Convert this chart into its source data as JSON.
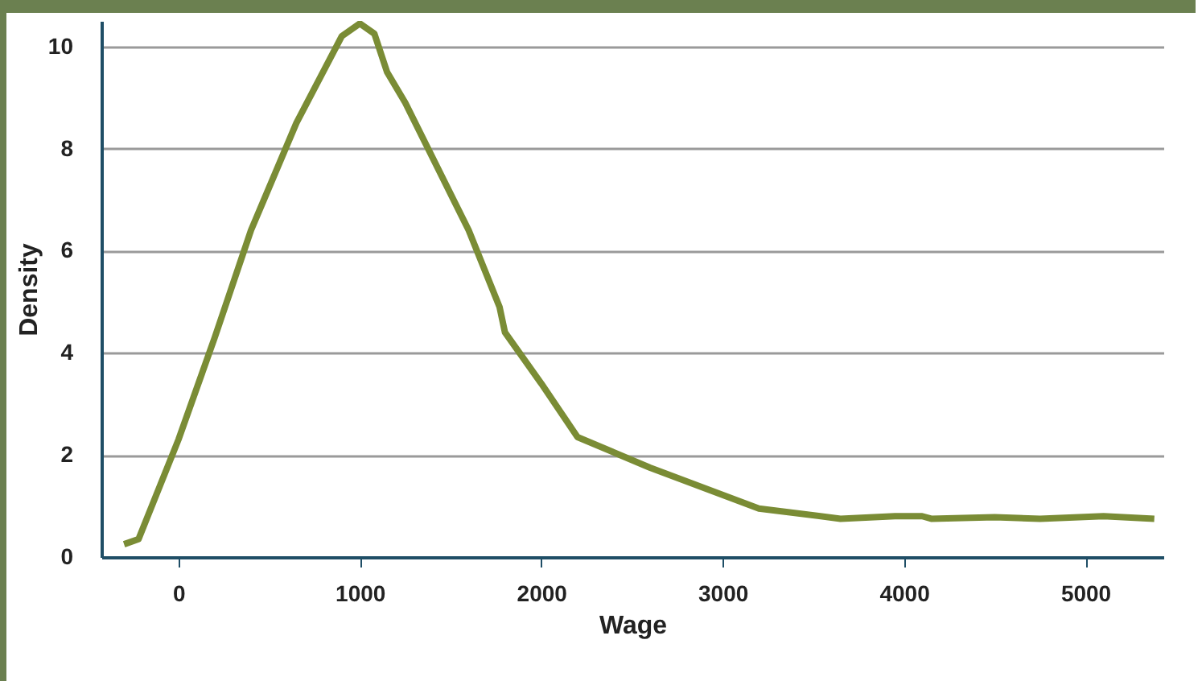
{
  "chart_data": {
    "type": "line",
    "xlabel": "Wage",
    "ylabel": "Density",
    "x": [
      -300,
      -220,
      0,
      200,
      400,
      650,
      900,
      1000,
      1080,
      1150,
      1250,
      1600,
      1770,
      1800,
      2000,
      2200,
      2600,
      3200,
      3650,
      3950,
      4100,
      4150,
      4500,
      4750,
      5100,
      5380
    ],
    "series": [
      {
        "color": "#7a8c35",
        "values": [
          0.25,
          0.35,
          2.3,
          4.3,
          6.4,
          8.5,
          10.2,
          10.45,
          10.25,
          9.5,
          8.9,
          6.4,
          4.9,
          4.4,
          3.4,
          2.35,
          1.75,
          0.95,
          0.75,
          0.8,
          0.8,
          0.75,
          0.78,
          0.75,
          0.8,
          0.75
        ]
      }
    ],
    "xlim": [
      -425,
      5430
    ],
    "xticks": [
      0,
      1000,
      2000,
      3000,
      4000,
      5000
    ],
    "ylim": [
      0,
      10.5
    ],
    "yticks": [
      0,
      2,
      4,
      6,
      8,
      10
    ],
    "grid": "y",
    "marker": "none",
    "line_style": "solid"
  }
}
